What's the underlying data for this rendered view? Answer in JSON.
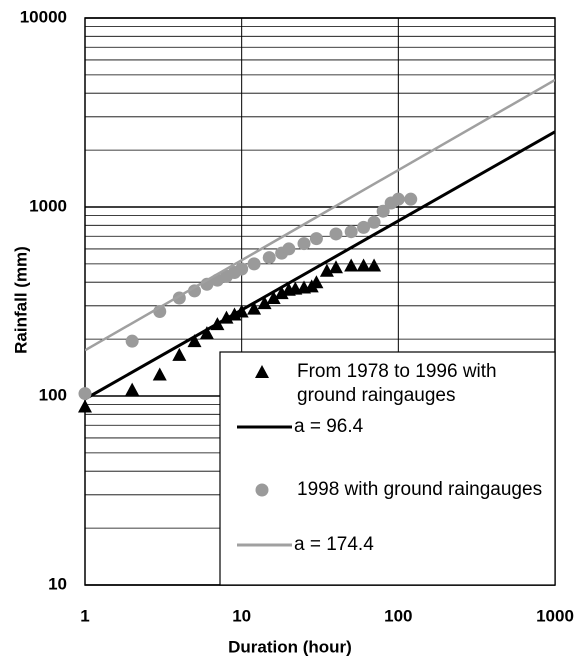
{
  "chart_data": {
    "type": "scatter",
    "x_label": "Duration (hour)",
    "y_label": "Rainfall (mm)",
    "xlog": true,
    "ylog": true,
    "xlim": [
      1,
      1000
    ],
    "ylim": [
      10,
      10000
    ],
    "xticks": [
      1,
      10,
      100,
      1000
    ],
    "yticks": [
      10,
      100,
      1000,
      10000
    ],
    "grid": true,
    "y_minor_grid": true,
    "legend": "lower right",
    "series": [
      {
        "name": "From 1978 to 1996 with ground raingauges",
        "marker": "triangle",
        "color": "#000000",
        "x": [
          1,
          2,
          3,
          4,
          5,
          6,
          7,
          8,
          9,
          10,
          12,
          14,
          16,
          18,
          20,
          22,
          25,
          28,
          30,
          35,
          40,
          50,
          60,
          70
        ],
        "values": [
          88,
          108,
          130,
          165,
          195,
          215,
          240,
          260,
          270,
          280,
          290,
          310,
          330,
          350,
          365,
          370,
          375,
          380,
          400,
          460,
          480,
          490,
          490,
          490
        ]
      },
      {
        "name": "a = 96.4",
        "marker": "line",
        "color": "#000000",
        "x": [
          1,
          1000
        ],
        "values": [
          96.4,
          2500
        ]
      },
      {
        "name": "1998 with ground raingauges",
        "marker": "circle",
        "color": "#9a9a9a",
        "x": [
          1,
          2,
          3,
          4,
          5,
          6,
          7,
          8,
          9,
          10,
          12,
          15,
          18,
          20,
          25,
          30,
          40,
          50,
          60,
          70,
          80,
          90,
          100,
          120
        ],
        "values": [
          103,
          195,
          280,
          330,
          360,
          390,
          410,
          430,
          450,
          470,
          500,
          540,
          570,
          600,
          640,
          680,
          720,
          740,
          780,
          830,
          950,
          1050,
          1100,
          1100
        ]
      },
      {
        "name": "a = 174.4",
        "marker": "line",
        "color": "#a0a0a0",
        "x": [
          1,
          1000
        ],
        "values": [
          174.4,
          4700
        ]
      }
    ]
  }
}
